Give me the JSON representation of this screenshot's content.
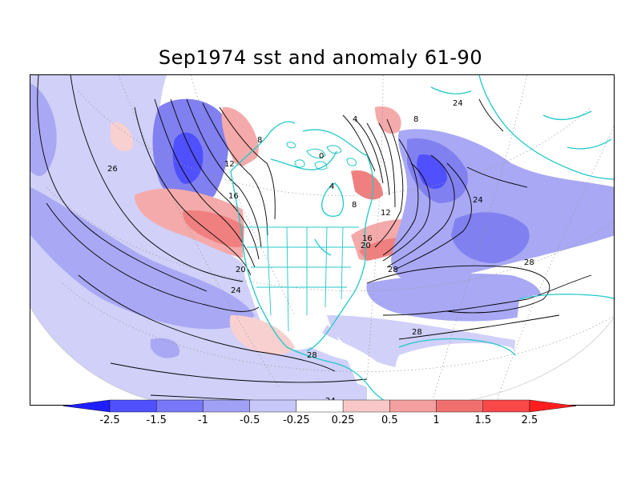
{
  "title": "Sep1974 sst and anomaly 61-90",
  "colors": {
    "coast": "#20c8c8",
    "contour": "#000000",
    "neg3": "#1e1eff",
    "neg2": "#5050ff",
    "neg1": "#8080f0",
    "neg0": "#a8a8f4",
    "negweak": "#d0d0f8",
    "posweak": "#f8d0d0",
    "pos0": "#f4aaaa",
    "pos1": "#f08080",
    "pos2": "#f85050",
    "pos3": "#ff1e1e"
  },
  "contour_labels": [
    "26",
    "12",
    "16",
    "20",
    "24",
    "8",
    "0",
    "4",
    "8",
    "12",
    "16",
    "20",
    "24",
    "28",
    "28",
    "24",
    "28",
    "28",
    "24",
    "4",
    "8"
  ],
  "colorbar": {
    "ticks": [
      "-2.5",
      "-1.5",
      "-1",
      "-0.5",
      "-0.25",
      "0.25",
      "0.5",
      "1",
      "1.5",
      "2.5"
    ],
    "bins": [
      "#1e1eff",
      "#5050ff",
      "#7878f8",
      "#a0a0f4",
      "#c8c8f8",
      "#ffffff",
      "#f8c8c8",
      "#f4a0a0",
      "#f07070",
      "#f84848",
      "#ff1e1e"
    ]
  }
}
